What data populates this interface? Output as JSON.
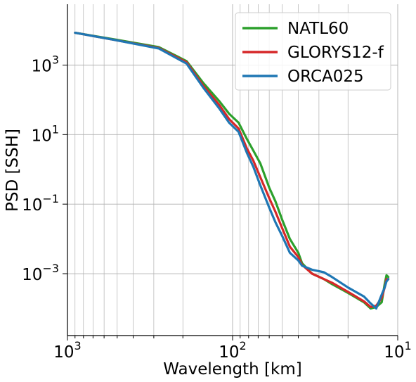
{
  "chart_data": {
    "type": "line",
    "xlabel": "Wavelength [km]",
    "ylabel": "PSD [SSH]",
    "x_scale": "log",
    "x_reversed": true,
    "y_scale": "log",
    "xlim": [
      1000,
      10
    ],
    "ylim_log10": [
      -4.78,
      4.75
    ],
    "grid": true,
    "legend_placement": "top-right",
    "x_ticks": [
      {
        "value": 1000,
        "base": "10",
        "exp": "3"
      },
      {
        "value": 100,
        "base": "10",
        "exp": "2"
      },
      {
        "value": 10,
        "base": "10",
        "exp": "1"
      }
    ],
    "y_ticks": [
      {
        "value": 1000,
        "base": "10",
        "exp": "3"
      },
      {
        "value": 10,
        "base": "10",
        "exp": "1"
      },
      {
        "value": 0.1,
        "base": "10",
        "exp": "−1"
      },
      {
        "value": 0.001,
        "base": "10",
        "exp": "−3"
      }
    ],
    "series": [
      {
        "name": "NATL60",
        "color": "#2ca02c",
        "points": [
          [
            900,
            8500
          ],
          [
            520,
            5500
          ],
          [
            280,
            3300
          ],
          [
            190,
            1300
          ],
          [
            150,
            300
          ],
          [
            120,
            90
          ],
          [
            105,
            40
          ],
          [
            92,
            22
          ],
          [
            82,
            7.5
          ],
          [
            75,
            3.5
          ],
          [
            68,
            1.5
          ],
          [
            60,
            0.3
          ],
          [
            55,
            0.12
          ],
          [
            50,
            0.035
          ],
          [
            45,
            0.01
          ],
          [
            40,
            0.004
          ],
          [
            38,
            0.002
          ],
          [
            33,
            0.001
          ],
          [
            28,
            0.0007
          ],
          [
            25,
            0.0005
          ],
          [
            20,
            0.00028
          ],
          [
            16,
            0.00015
          ],
          [
            14.6,
            0.0001
          ],
          [
            13.5,
            0.00011
          ],
          [
            12.5,
            0.00015
          ],
          [
            12,
            0.0005
          ],
          [
            11.7,
            0.0009
          ],
          [
            11.4,
            0.0008
          ]
        ]
      },
      {
        "name": "GLORYS12-f",
        "color": "#d62728",
        "points": [
          [
            900,
            8500
          ],
          [
            520,
            5300
          ],
          [
            280,
            3100
          ],
          [
            190,
            1200
          ],
          [
            150,
            250
          ],
          [
            120,
            70
          ],
          [
            105,
            28
          ],
          [
            92,
            15
          ],
          [
            82,
            4
          ],
          [
            75,
            1.8
          ],
          [
            68,
            0.6
          ],
          [
            60,
            0.15
          ],
          [
            55,
            0.06
          ],
          [
            50,
            0.02
          ],
          [
            45,
            0.006
          ],
          [
            40,
            0.003
          ],
          [
            38,
            0.0018
          ],
          [
            33,
            0.001
          ],
          [
            28,
            0.0007
          ],
          [
            25,
            0.00055
          ],
          [
            20,
            0.0003
          ],
          [
            16,
            0.00016
          ],
          [
            14.6,
            0.00011
          ],
          [
            13.5,
            0.00012
          ],
          [
            12.5,
            0.0002
          ],
          [
            12,
            0.0004
          ],
          [
            11.7,
            0.0007
          ],
          [
            11.4,
            0.0007
          ]
        ]
      },
      {
        "name": "ORCA025",
        "color": "#1f77b4",
        "points": [
          [
            900,
            8500
          ],
          [
            520,
            5300
          ],
          [
            280,
            3000
          ],
          [
            190,
            1100
          ],
          [
            150,
            220
          ],
          [
            120,
            55
          ],
          [
            105,
            22
          ],
          [
            92,
            12
          ],
          [
            82,
            3
          ],
          [
            75,
            1.2
          ],
          [
            68,
            0.35
          ],
          [
            60,
            0.08
          ],
          [
            55,
            0.03
          ],
          [
            50,
            0.012
          ],
          [
            45,
            0.004
          ],
          [
            40,
            0.0024
          ],
          [
            38,
            0.0017
          ],
          [
            33,
            0.0013
          ],
          [
            28,
            0.0011
          ],
          [
            25,
            0.0008
          ],
          [
            20,
            0.0004
          ],
          [
            16,
            0.00022
          ],
          [
            14.6,
            0.00014
          ],
          [
            13.5,
            0.0001
          ],
          [
            12.5,
            0.00025
          ],
          [
            12,
            0.0004
          ],
          [
            11.7,
            0.0006
          ],
          [
            11.4,
            0.0007
          ]
        ]
      }
    ]
  }
}
